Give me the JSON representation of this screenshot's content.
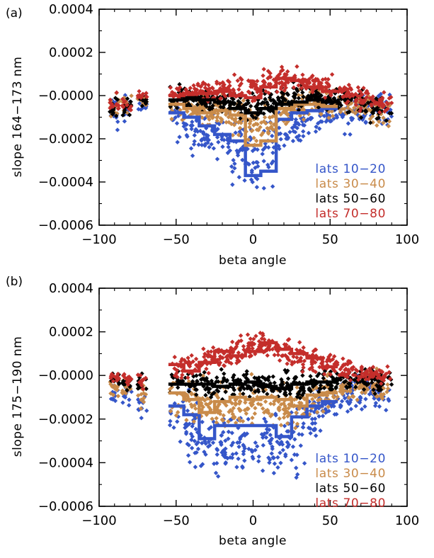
{
  "chart_data": [
    {
      "type": "scatter",
      "panel_label": "(a)",
      "xlabel": "beta angle",
      "ylabel": "slope 164−173 nm",
      "xlim": [
        -100,
        100
      ],
      "ylim": [
        -0.0006,
        0.0004
      ],
      "xticks": [
        -100,
        -50,
        0,
        50,
        100
      ],
      "xtick_labels": [
        "−100",
        "−50",
        "0",
        "50",
        "100"
      ],
      "yticks": [
        -0.0006,
        -0.0004,
        -0.0002,
        0.0,
        0.0002,
        0.0004
      ],
      "ytick_labels": [
        "−0.0006",
        "−0.0004",
        "−0.0002",
        "−0.0000",
        "0.0002",
        "0.0004"
      ],
      "legend_position": "lower-right",
      "series": [
        {
          "name": "lats 10−20",
          "color": "#3556c9",
          "scatter_stats": {
            "beta_mean": [
              -90,
              -82,
              -72,
              -45,
              -35,
              -25,
              -15,
              -5,
              5,
              15,
              25,
              35,
              45,
              55,
              65,
              75,
              85
            ],
            "slope_mean": [
              -8e-05,
              -7e-05,
              -4e-05,
              -0.00014,
              -0.00017,
              -0.00018,
              -0.00021,
              -0.00028,
              -0.00029,
              -0.00018,
              -0.00014,
              -0.0001,
              -9e-05,
              -9e-05,
              -7e-05,
              -5e-05,
              -6e-05
            ],
            "slope_spread": [
              0.00012,
              8e-05,
              4e-05,
              0.00012,
              0.00012,
              0.00014,
              0.00014,
              0.00016,
              0.00016,
              0.00014,
              0.00012,
              0.00011,
              0.0001,
              9e-05,
              9e-05,
              8e-05,
              9e-05
            ]
          },
          "median_step": {
            "x": [
              -50,
              -40,
              -30,
              -20,
              -10,
              0,
              10,
              20,
              30,
              40,
              50
            ],
            "y": [
              -8e-05,
              -0.0001,
              -0.00014,
              -0.00018,
              -0.00021,
              -0.00037,
              -0.00035,
              -0.00011,
              -8e-05,
              -7e-05,
              -6e-05
            ]
          }
        },
        {
          "name": "lats 30−40",
          "color": "#c98b4a",
          "scatter_stats": {
            "beta_mean": [
              -90,
              -82,
              -72,
              -45,
              -35,
              -25,
              -15,
              -5,
              5,
              15,
              25,
              35,
              45,
              55,
              65,
              75,
              85
            ],
            "slope_mean": [
              -5e-05,
              -4e-05,
              -2e-05,
              -6e-05,
              -7e-05,
              -8e-05,
              -0.0001,
              -0.00014,
              -0.00013,
              -7e-05,
              -5e-05,
              -4e-05,
              -3e-05,
              -4e-05,
              -4e-05,
              -5e-05,
              -8e-05
            ],
            "slope_spread": [
              8e-05,
              6e-05,
              3e-05,
              8e-05,
              8e-05,
              0.0001,
              0.00011,
              0.00012,
              0.00012,
              0.0001,
              9e-05,
              8e-05,
              8e-05,
              7e-05,
              7e-05,
              7e-05,
              8e-05
            ]
          },
          "median_step": {
            "x": [
              -50,
              -40,
              -30,
              -20,
              -10,
              0,
              10,
              20,
              30,
              40,
              50
            ],
            "y": [
              -4e-05,
              -6e-05,
              -8e-05,
              -7e-05,
              -9e-05,
              -0.00023,
              -0.00021,
              -6e-05,
              -4e-05,
              -4e-05,
              -5e-05
            ]
          }
        },
        {
          "name": "lats 50−60",
          "color": "#000000",
          "scatter_stats": {
            "beta_mean": [
              -90,
              -82,
              -72,
              -45,
              -35,
              -25,
              -15,
              -5,
              5,
              15,
              25,
              35,
              45,
              55,
              65,
              75,
              85
            ],
            "slope_mean": [
              -6e-05,
              -5e-05,
              -2e-05,
              -1e-05,
              -2e-05,
              -2e-05,
              -3e-05,
              -5e-05,
              -5e-05,
              -2e-05,
              -1e-05,
              0.0,
              -1e-05,
              -2e-05,
              -3e-05,
              -4e-05,
              -7e-05
            ],
            "slope_spread": [
              6e-05,
              5e-05,
              3e-05,
              7e-05,
              7e-05,
              7e-05,
              7e-05,
              8e-05,
              8e-05,
              7e-05,
              7e-05,
              7e-05,
              6e-05,
              6e-05,
              6e-05,
              6e-05,
              6e-05
            ]
          },
          "median_step": {
            "x": [
              -50,
              -40,
              -30,
              -20,
              -10,
              0,
              10,
              20,
              30,
              40,
              50
            ],
            "y": [
              -2e-05,
              -1e-05,
              -2e-05,
              -3e-05,
              -6e-05,
              -8e-05,
              -6e-05,
              -4e-05,
              -3e-05,
              -2e-05,
              -3e-05
            ]
          }
        },
        {
          "name": "lats 70−80",
          "color": "#c42e2b",
          "scatter_stats": {
            "beta_mean": [
              -90,
              -82,
              -72,
              -45,
              -35,
              -25,
              -15,
              -5,
              5,
              15,
              25,
              35,
              45,
              55,
              65,
              75,
              85
            ],
            "slope_mean": [
              -4e-05,
              -4e-05,
              -1e-05,
              1e-05,
              2e-05,
              3e-05,
              4e-05,
              3e-05,
              5e-05,
              7e-05,
              8e-05,
              6e-05,
              4e-05,
              2e-05,
              0.0,
              -2e-05,
              -4e-05
            ],
            "slope_spread": [
              5e-05,
              4e-05,
              3e-05,
              5e-05,
              5e-05,
              6e-05,
              6e-05,
              6e-05,
              6e-05,
              7e-05,
              7e-05,
              6e-05,
              6e-05,
              5e-05,
              5e-05,
              5e-05,
              5e-05
            ]
          },
          "median_step": {
            "x": [
              -50,
              -40,
              -30,
              -20,
              -10,
              0,
              10,
              20,
              30,
              40,
              50
            ],
            "y": [
              0.0,
              1e-05,
              1e-05,
              2e-05,
              0.0,
              -1e-05,
              4e-05,
              8e-05,
              7e-05,
              4e-05,
              2e-05
            ]
          }
        }
      ]
    },
    {
      "type": "scatter",
      "panel_label": "(b)",
      "xlabel": "beta angle",
      "ylabel": "slope 175−190 nm",
      "xlim": [
        -100,
        100
      ],
      "ylim": [
        -0.0006,
        0.0004
      ],
      "xticks": [
        -100,
        -50,
        0,
        50,
        100
      ],
      "xtick_labels": [
        "−100",
        "−50",
        "0",
        "50",
        "100"
      ],
      "yticks": [
        -0.0006,
        -0.0004,
        -0.0002,
        0.0,
        0.0002,
        0.0004
      ],
      "ytick_labels": [
        "−0.0006",
        "−0.0004",
        "−0.0002",
        "−0.0000",
        "0.0002",
        "0.0004"
      ],
      "legend_position": "lower-right",
      "series": [
        {
          "name": "lats 10−20",
          "color": "#3556c9",
          "scatter_stats": {
            "beta_mean": [
              -90,
              -82,
              -72,
              -45,
              -35,
              -25,
              -15,
              -5,
              5,
              15,
              25,
              35,
              45,
              55,
              65,
              75,
              85
            ],
            "slope_mean": [
              -9e-05,
              -0.0001,
              -0.00014,
              -0.00022,
              -0.00028,
              -0.00032,
              -0.0003,
              -0.00034,
              -0.00033,
              -0.00028,
              -0.00031,
              -0.00022,
              -0.00015,
              -0.00012,
              -8e-05,
              -6e-05,
              -8e-05
            ],
            "slope_spread": [
              8e-05,
              7e-05,
              7e-05,
              0.00014,
              0.00016,
              0.00016,
              0.00016,
              0.00018,
              0.00018,
              0.00016,
              0.00016,
              0.00014,
              0.00012,
              0.0001,
              0.0001,
              9e-05,
              9e-05
            ]
          },
          "median_step": {
            "x": [
              -50,
              -40,
              -30,
              -20,
              -10,
              0,
              10,
              20,
              30,
              40,
              50
            ],
            "y": [
              -0.00014,
              -0.00018,
              -0.00029,
              -0.00023,
              -0.00023,
              -0.00023,
              -0.00023,
              -0.00028,
              -0.00019,
              -0.00014,
              -0.00012
            ]
          }
        },
        {
          "name": "lats 30−40",
          "color": "#c98b4a",
          "scatter_stats": {
            "beta_mean": [
              -90,
              -82,
              -72,
              -45,
              -35,
              -25,
              -15,
              -5,
              5,
              15,
              25,
              35,
              45,
              55,
              65,
              75,
              85
            ],
            "slope_mean": [
              -5e-05,
              -6e-05,
              -9e-05,
              -0.0001,
              -0.00013,
              -0.00015,
              -0.00013,
              -0.00014,
              -0.00014,
              -0.00013,
              -0.00015,
              -0.00011,
              -9e-05,
              -7e-05,
              -5e-05,
              -4e-05,
              -7e-05
            ],
            "slope_spread": [
              7e-05,
              6e-05,
              6e-05,
              0.0001,
              0.00012,
              0.00012,
              0.00012,
              0.00013,
              0.00013,
              0.00012,
              0.00012,
              0.00011,
              0.0001,
              9e-05,
              8e-05,
              8e-05,
              8e-05
            ]
          },
          "median_step": {
            "x": [
              -50,
              -40,
              -30,
              -20,
              -10,
              0,
              10,
              20,
              30,
              40,
              50
            ],
            "y": [
              -8e-05,
              -0.00011,
              -0.00017,
              -0.00012,
              -0.0001,
              -0.00011,
              -0.0001,
              -0.00011,
              -0.00014,
              -9e-05,
              -8e-05
            ]
          }
        },
        {
          "name": "lats 50−60",
          "color": "#000000",
          "scatter_stats": {
            "beta_mean": [
              -90,
              -82,
              -72,
              -45,
              -35,
              -25,
              -15,
              -5,
              5,
              15,
              25,
              35,
              45,
              55,
              65,
              75,
              85
            ],
            "slope_mean": [
              -2e-05,
              -3e-05,
              -4e-05,
              -3e-05,
              -4e-05,
              -5e-05,
              -4e-05,
              -4e-05,
              -4e-05,
              -5e-05,
              -6e-05,
              -4e-05,
              -3e-05,
              -2e-05,
              -1e-05,
              -1e-05,
              -3e-05
            ],
            "slope_spread": [
              5e-05,
              5e-05,
              5e-05,
              6e-05,
              7e-05,
              7e-05,
              7e-05,
              7e-05,
              7e-05,
              7e-05,
              7e-05,
              7e-05,
              6e-05,
              6e-05,
              6e-05,
              6e-05,
              6e-05
            ]
          },
          "median_step": {
            "x": [
              -50,
              -40,
              -30,
              -20,
              -10,
              0,
              10,
              20,
              30,
              40,
              50
            ],
            "y": [
              -4e-05,
              -4e-05,
              -4e-05,
              -5e-05,
              -4e-05,
              -3e-05,
              -5e-05,
              -6e-05,
              -4e-05,
              -3e-05,
              -3e-05
            ]
          }
        },
        {
          "name": "lats 70−80",
          "color": "#c42e2b",
          "scatter_stats": {
            "beta_mean": [
              -90,
              -82,
              -72,
              -45,
              -35,
              -25,
              -15,
              -5,
              5,
              15,
              25,
              35,
              45,
              55,
              65,
              75,
              85
            ],
            "slope_mean": [
              -1e-05,
              -1e-05,
              -2e-05,
              4e-05,
              6e-05,
              9e-05,
              0.0001,
              0.00012,
              0.00014,
              0.00012,
              0.0001,
              8e-05,
              6e-05,
              4e-05,
              2e-05,
              1e-05,
              0.0
            ],
            "slope_spread": [
              4e-05,
              4e-05,
              4e-05,
              6e-05,
              7e-05,
              7e-05,
              7e-05,
              8e-05,
              8e-05,
              7e-05,
              7e-05,
              7e-05,
              6e-05,
              5e-05,
              5e-05,
              5e-05,
              5e-05
            ]
          },
          "median_step": {
            "x": [
              -50,
              -40,
              -30,
              -20,
              -10,
              0,
              10,
              20,
              30,
              40,
              50
            ],
            "y": [
              5e-05,
              2e-05,
              6e-05,
              0.00011,
              9e-05,
              0.00011,
              0.00015,
              0.00012,
              0.0001,
              8e-05,
              4e-05
            ]
          }
        }
      ]
    }
  ]
}
